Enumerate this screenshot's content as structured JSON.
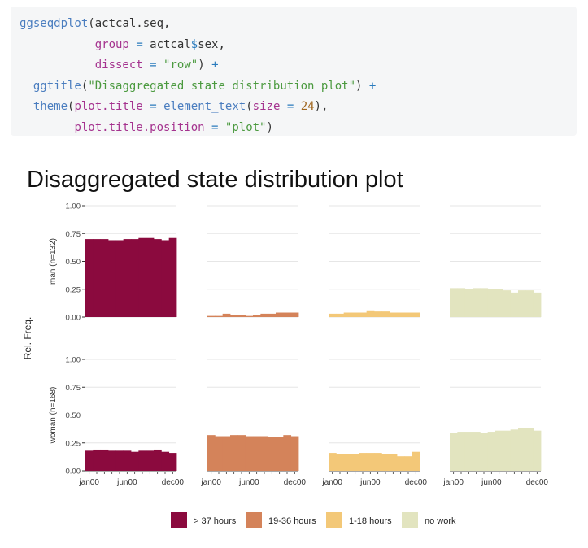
{
  "code": {
    "lines": [
      [
        [
          "fn",
          "ggseqdplot"
        ],
        [
          "punc",
          "(actcal.seq,"
        ]
      ],
      [
        [
          "punc",
          "           "
        ],
        [
          "arg",
          "group"
        ],
        [
          "punc",
          " "
        ],
        [
          "op",
          "="
        ],
        [
          "punc",
          " actcal"
        ],
        [
          "op",
          "$"
        ],
        [
          "punc",
          "sex,"
        ]
      ],
      [
        [
          "punc",
          "           "
        ],
        [
          "arg",
          "dissect"
        ],
        [
          "punc",
          " "
        ],
        [
          "op",
          "="
        ],
        [
          "punc",
          " "
        ],
        [
          "str",
          "\"row\""
        ],
        [
          "punc",
          ") "
        ],
        [
          "op",
          "+"
        ]
      ],
      [
        [
          "punc",
          "  "
        ],
        [
          "fn",
          "ggtitle"
        ],
        [
          "punc",
          "("
        ],
        [
          "str",
          "\"Disaggregated state distribution plot\""
        ],
        [
          "punc",
          ") "
        ],
        [
          "op",
          "+"
        ]
      ],
      [
        [
          "punc",
          "  "
        ],
        [
          "fn",
          "theme"
        ],
        [
          "punc",
          "("
        ],
        [
          "arg",
          "plot.title"
        ],
        [
          "punc",
          " "
        ],
        [
          "op",
          "="
        ],
        [
          "punc",
          " "
        ],
        [
          "fn",
          "element_text"
        ],
        [
          "punc",
          "("
        ],
        [
          "arg",
          "size"
        ],
        [
          "punc",
          " "
        ],
        [
          "op",
          "="
        ],
        [
          "punc",
          " "
        ],
        [
          "num",
          "24"
        ],
        [
          "punc",
          "),"
        ]
      ],
      [
        [
          "punc",
          "        "
        ],
        [
          "arg",
          "plot.title.position"
        ],
        [
          "punc",
          " "
        ],
        [
          "op",
          "="
        ],
        [
          "punc",
          " "
        ],
        [
          "str",
          "\"plot\""
        ],
        [
          "punc",
          ")"
        ]
      ]
    ]
  },
  "chart_data": {
    "type": "bar",
    "title": "Disaggregated state distribution plot",
    "ylabel": "Rel. Freq.",
    "ylim": [
      0,
      1
    ],
    "yticks": [
      "0.00",
      "0.25",
      "0.50",
      "0.75",
      "1.00"
    ],
    "xticks": [
      "jan00",
      "jun00",
      "dec00"
    ],
    "months": [
      "jan00",
      "feb00",
      "mar00",
      "apr00",
      "may00",
      "jun00",
      "jul00",
      "aug00",
      "sep00",
      "oct00",
      "nov00",
      "dec00"
    ],
    "rows": [
      {
        "label": "man (n=132)",
        "series": [
          {
            "state": "> 37 hours",
            "values": [
              0.7,
              0.7,
              0.7,
              0.69,
              0.69,
              0.7,
              0.7,
              0.71,
              0.71,
              0.7,
              0.69,
              0.71
            ]
          },
          {
            "state": "19-36 hours",
            "values": [
              0.01,
              0.01,
              0.03,
              0.02,
              0.02,
              0.01,
              0.02,
              0.03,
              0.03,
              0.04,
              0.04,
              0.04
            ]
          },
          {
            "state": "1-18 hours",
            "values": [
              0.03,
              0.03,
              0.04,
              0.04,
              0.04,
              0.06,
              0.05,
              0.05,
              0.04,
              0.04,
              0.04,
              0.04
            ]
          },
          {
            "state": "no work",
            "values": [
              0.26,
              0.26,
              0.25,
              0.26,
              0.26,
              0.25,
              0.25,
              0.24,
              0.22,
              0.24,
              0.24,
              0.22
            ]
          }
        ]
      },
      {
        "label": "woman (n=168)",
        "series": [
          {
            "state": "> 37 hours",
            "values": [
              0.18,
              0.19,
              0.19,
              0.18,
              0.18,
              0.18,
              0.17,
              0.18,
              0.18,
              0.19,
              0.17,
              0.16
            ]
          },
          {
            "state": "19-36 hours",
            "values": [
              0.32,
              0.31,
              0.31,
              0.32,
              0.32,
              0.31,
              0.31,
              0.31,
              0.3,
              0.3,
              0.32,
              0.31
            ]
          },
          {
            "state": "1-18 hours",
            "values": [
              0.16,
              0.15,
              0.15,
              0.15,
              0.16,
              0.16,
              0.16,
              0.15,
              0.15,
              0.13,
              0.13,
              0.17
            ]
          },
          {
            "state": "no work",
            "values": [
              0.34,
              0.35,
              0.35,
              0.35,
              0.34,
              0.35,
              0.36,
              0.36,
              0.37,
              0.38,
              0.38,
              0.36
            ]
          }
        ]
      }
    ],
    "legend": {
      "position": "bottom",
      "entries": [
        {
          "label": "> 37 hours",
          "color": "#8b0a3e"
        },
        {
          "label": "19-36 hours",
          "color": "#d4835a"
        },
        {
          "label": "1-18 hours",
          "color": "#f3c878"
        },
        {
          "label": "no work",
          "color": "#e2e4bf"
        }
      ]
    }
  }
}
